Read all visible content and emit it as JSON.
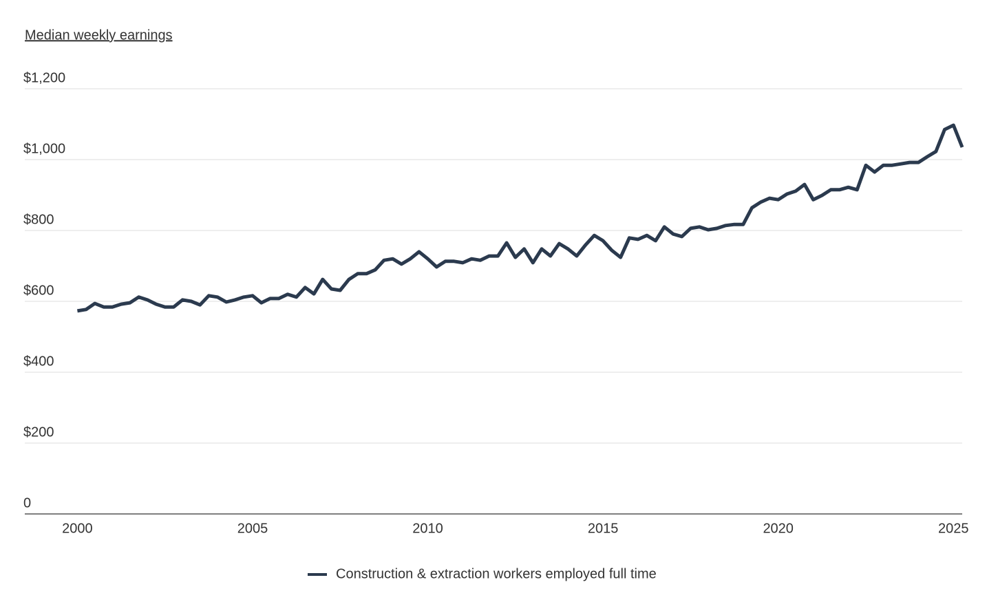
{
  "chart_data": {
    "type": "line",
    "title": "Median weekly earnings",
    "x": [
      2000,
      2000.25,
      2000.5,
      2000.75,
      2001,
      2001.25,
      2001.5,
      2001.75,
      2002,
      2002.25,
      2002.5,
      2002.75,
      2003,
      2003.25,
      2003.5,
      2003.75,
      2004,
      2004.25,
      2004.5,
      2004.75,
      2005,
      2005.25,
      2005.5,
      2005.75,
      2006,
      2006.25,
      2006.5,
      2006.75,
      2007,
      2007.25,
      2007.5,
      2007.75,
      2008,
      2008.25,
      2008.5,
      2008.75,
      2009,
      2009.25,
      2009.5,
      2009.75,
      2010,
      2010.25,
      2010.5,
      2010.75,
      2011,
      2011.25,
      2011.5,
      2011.75,
      2012,
      2012.25,
      2012.5,
      2012.75,
      2013,
      2013.25,
      2013.5,
      2013.75,
      2014,
      2014.25,
      2014.5,
      2014.75,
      2015,
      2015.25,
      2015.5,
      2015.75,
      2016,
      2016.25,
      2016.5,
      2016.75,
      2017,
      2017.25,
      2017.5,
      2017.75,
      2018,
      2018.25,
      2018.5,
      2018.75,
      2019,
      2019.25,
      2019.5,
      2019.75,
      2020,
      2020.25,
      2020.5,
      2020.75,
      2021,
      2021.25,
      2021.5,
      2021.75,
      2022,
      2022.25,
      2022.5,
      2022.75,
      2023,
      2023.25,
      2023.5,
      2023.75,
      2024,
      2024.25,
      2024.5,
      2024.75,
      2025,
      2025.25
    ],
    "series": [
      {
        "name": "Construction & extraction workers employed full time",
        "color": "#2b3a4e",
        "values": [
          573,
          577,
          594,
          584,
          584,
          592,
          596,
          612,
          604,
          592,
          584,
          584,
          604,
          600,
          590,
          616,
          612,
          598,
          604,
          612,
          616,
          596,
          608,
          608,
          620,
          612,
          639,
          621,
          662,
          635,
          631,
          662,
          678,
          678,
          689,
          716,
          720,
          705,
          720,
          740,
          720,
          697,
          713,
          713,
          709,
          720,
          716,
          728,
          728,
          765,
          724,
          748,
          709,
          748,
          728,
          763,
          748,
          728,
          759,
          786,
          771,
          744,
          724,
          779,
          775,
          786,
          771,
          810,
          790,
          783,
          806,
          810,
          802,
          806,
          814,
          817,
          817,
          864,
          880,
          891,
          887,
          903,
          911,
          930,
          887,
          899,
          915,
          915,
          922,
          915,
          984,
          965,
          984,
          984,
          988,
          992,
          992,
          1008,
          1023,
          1085,
          1097,
          1035
        ]
      }
    ],
    "xlim": [
      1998.5,
      2025.25
    ],
    "xticks": [
      2000,
      2005,
      2010,
      2015,
      2020,
      2025
    ],
    "ylim": [
      0,
      1200
    ],
    "yticks": [
      {
        "value": 0,
        "label": "0"
      },
      {
        "value": 200,
        "label": "$200"
      },
      {
        "value": 400,
        "label": "$400"
      },
      {
        "value": 600,
        "label": "$600"
      },
      {
        "value": 800,
        "label": "$800"
      },
      {
        "value": 1000,
        "label": "$1,000"
      },
      {
        "value": 1200,
        "label": "$1,200"
      }
    ],
    "grid": true
  }
}
